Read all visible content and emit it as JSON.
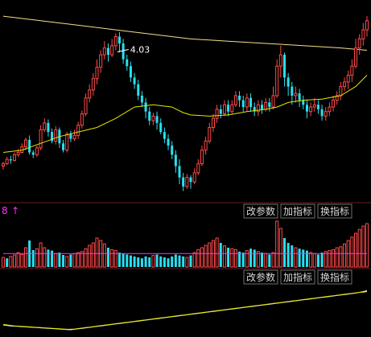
{
  "toolbar": {
    "buttons": [
      "改参数",
      "加指标",
      "换指标"
    ]
  },
  "volume_panel": {
    "indicator_label": "8",
    "arrow": "↑"
  },
  "chart_data": [
    {
      "type": "candlestick",
      "title": "",
      "annotations": [
        {
          "label": "4.03",
          "x": 30
        }
      ],
      "colors": {
        "up": "#ff4a4a",
        "down": "#28e0f0",
        "ma_short": "#e6e600",
        "ma_long": "#f2e08a"
      },
      "grid": false,
      "candles": [
        [
          0,
          98,
          100,
          95,
          102
        ],
        [
          1,
          100,
          104,
          99,
          106
        ],
        [
          2,
          104,
          103,
          100,
          107
        ],
        [
          3,
          103,
          108,
          102,
          110
        ],
        [
          4,
          108,
          110,
          106,
          113
        ],
        [
          5,
          110,
          115,
          109,
          118
        ],
        [
          6,
          115,
          121,
          112,
          123
        ],
        [
          7,
          121,
          110,
          108,
          125
        ],
        [
          8,
          110,
          108,
          105,
          112
        ],
        [
          9,
          108,
          114,
          106,
          116
        ],
        [
          10,
          114,
          130,
          112,
          134
        ],
        [
          11,
          130,
          136,
          128,
          140
        ],
        [
          12,
          136,
          128,
          124,
          139
        ],
        [
          13,
          128,
          120,
          118,
          131
        ],
        [
          14,
          120,
          130,
          117,
          133
        ],
        [
          15,
          130,
          118,
          114,
          132
        ],
        [
          16,
          118,
          112,
          110,
          121
        ],
        [
          17,
          112,
          126,
          110,
          128
        ],
        [
          18,
          126,
          122,
          119,
          129
        ],
        [
          19,
          122,
          125,
          120,
          130
        ],
        [
          20,
          125,
          134,
          122,
          137
        ],
        [
          21,
          134,
          144,
          131,
          147
        ],
        [
          22,
          144,
          158,
          142,
          162
        ],
        [
          23,
          158,
          165,
          154,
          170
        ],
        [
          24,
          165,
          175,
          160,
          180
        ],
        [
          25,
          175,
          185,
          170,
          192
        ],
        [
          26,
          185,
          196,
          180,
          200
        ],
        [
          27,
          196,
          202,
          192,
          208
        ],
        [
          28,
          202,
          196,
          190,
          206
        ],
        [
          29,
          196,
          204,
          194,
          210
        ],
        [
          30,
          204,
          212,
          200,
          215
        ],
        [
          31,
          212,
          206,
          198,
          216
        ],
        [
          32,
          206,
          192,
          188,
          210
        ],
        [
          33,
          192,
          186,
          182,
          196
        ],
        [
          34,
          186,
          176,
          172,
          190
        ],
        [
          35,
          176,
          170,
          166,
          180
        ],
        [
          36,
          170,
          160,
          156,
          174
        ],
        [
          37,
          160,
          154,
          150,
          164
        ],
        [
          38,
          154,
          146,
          140,
          158
        ],
        [
          39,
          146,
          138,
          134,
          150
        ],
        [
          40,
          138,
          142,
          134,
          145
        ],
        [
          41,
          142,
          136,
          130,
          146
        ],
        [
          42,
          136,
          128,
          126,
          140
        ],
        [
          43,
          128,
          122,
          118,
          132
        ],
        [
          44,
          122,
          116,
          112,
          126
        ],
        [
          45,
          116,
          108,
          104,
          120
        ],
        [
          46,
          108,
          98,
          92,
          112
        ],
        [
          47,
          98,
          88,
          82,
          104
        ],
        [
          48,
          88,
          80,
          76,
          92
        ],
        [
          49,
          80,
          88,
          78,
          91
        ],
        [
          50,
          88,
          84,
          78,
          90
        ],
        [
          51,
          84,
          92,
          82,
          96
        ],
        [
          52,
          92,
          100,
          90,
          104
        ],
        [
          53,
          100,
          112,
          98,
          116
        ],
        [
          54,
          112,
          120,
          108,
          124
        ],
        [
          55,
          120,
          132,
          118,
          136
        ],
        [
          56,
          132,
          140,
          128,
          144
        ],
        [
          57,
          140,
          148,
          136,
          152
        ],
        [
          58,
          148,
          144,
          140,
          152
        ],
        [
          59,
          144,
          152,
          142,
          156
        ],
        [
          60,
          152,
          146,
          142,
          156
        ],
        [
          61,
          146,
          152,
          144,
          156
        ],
        [
          62,
          152,
          160,
          150,
          164
        ],
        [
          63,
          160,
          156,
          150,
          164
        ],
        [
          64,
          156,
          150,
          146,
          160
        ],
        [
          65,
          150,
          158,
          146,
          162
        ],
        [
          66,
          158,
          150,
          146,
          162
        ],
        [
          67,
          150,
          146,
          142,
          154
        ],
        [
          68,
          146,
          152,
          142,
          156
        ],
        [
          69,
          152,
          148,
          144,
          156
        ],
        [
          70,
          148,
          154,
          146,
          158
        ],
        [
          71,
          154,
          150,
          146,
          158
        ],
        [
          72,
          150,
          160,
          148,
          168
        ],
        [
          73,
          160,
          186,
          158,
          192
        ],
        [
          74,
          186,
          196,
          176,
          204
        ],
        [
          75,
          196,
          176,
          168,
          198
        ],
        [
          76,
          176,
          168,
          160,
          180
        ],
        [
          77,
          168,
          160,
          152,
          172
        ],
        [
          78,
          160,
          162,
          154,
          168
        ],
        [
          79,
          162,
          156,
          150,
          166
        ],
        [
          80,
          156,
          152,
          148,
          160
        ],
        [
          81,
          152,
          146,
          140,
          156
        ],
        [
          82,
          146,
          150,
          142,
          154
        ],
        [
          83,
          150,
          152,
          146,
          158
        ],
        [
          84,
          152,
          148,
          144,
          156
        ],
        [
          85,
          148,
          142,
          138,
          152
        ],
        [
          86,
          142,
          146,
          138,
          150
        ],
        [
          87,
          146,
          150,
          142,
          154
        ],
        [
          88,
          150,
          156,
          146,
          160
        ],
        [
          89,
          156,
          160,
          152,
          164
        ],
        [
          90,
          160,
          168,
          156,
          172
        ],
        [
          91,
          168,
          172,
          164,
          176
        ],
        [
          92,
          172,
          178,
          166,
          182
        ],
        [
          93,
          178,
          186,
          172,
          192
        ],
        [
          94,
          186,
          202,
          184,
          210
        ],
        [
          95,
          202,
          210,
          196,
          214
        ],
        [
          96,
          210,
          218,
          204,
          224
        ],
        [
          97,
          218,
          226,
          212,
          230
        ]
      ],
      "ma_short": [
        [
          0,
          110
        ],
        [
          5,
          112
        ],
        [
          10,
          118
        ],
        [
          15,
          124
        ],
        [
          20,
          128
        ],
        [
          25,
          132
        ],
        [
          30,
          140
        ],
        [
          35,
          150
        ],
        [
          40,
          152
        ],
        [
          45,
          150
        ],
        [
          48,
          145
        ],
        [
          50,
          143
        ],
        [
          55,
          142
        ],
        [
          60,
          143
        ],
        [
          65,
          146
        ],
        [
          70,
          148
        ],
        [
          73,
          150
        ],
        [
          76,
          154
        ],
        [
          80,
          156
        ],
        [
          85,
          157
        ],
        [
          90,
          160
        ],
        [
          94,
          168
        ],
        [
          97,
          178
        ]
      ],
      "ma_long": [
        [
          0,
          230
        ],
        [
          10,
          226
        ],
        [
          20,
          222
        ],
        [
          30,
          218
        ],
        [
          40,
          214
        ],
        [
          50,
          210
        ],
        [
          60,
          208
        ],
        [
          70,
          206
        ],
        [
          80,
          204
        ],
        [
          90,
          202
        ],
        [
          97,
          200
        ]
      ],
      "ylim": [
        70,
        240
      ],
      "xlim": [
        0,
        97
      ]
    },
    {
      "type": "bar",
      "title": "",
      "note": "volume",
      "values": [
        20,
        18,
        22,
        25,
        30,
        26,
        40,
        55,
        35,
        38,
        50,
        40,
        36,
        34,
        28,
        30,
        25,
        22,
        26,
        28,
        30,
        32,
        38,
        45,
        50,
        60,
        55,
        48,
        40,
        36,
        34,
        30,
        28,
        26,
        24,
        22,
        20,
        18,
        22,
        20,
        24,
        26,
        22,
        20,
        18,
        22,
        26,
        24,
        22,
        20,
        24,
        30,
        36,
        40,
        45,
        50,
        55,
        60,
        50,
        44,
        40,
        38,
        36,
        32,
        30,
        34,
        38,
        36,
        32,
        30,
        28,
        26,
        30,
        95,
        80,
        60,
        50,
        45,
        40,
        38,
        36,
        34,
        30,
        28,
        26,
        30,
        32,
        34,
        36,
        40,
        42,
        48,
        55,
        62,
        70,
        78,
        85,
        90
      ],
      "up_flags": [
        1,
        0,
        1,
        1,
        1,
        1,
        1,
        0,
        0,
        1,
        1,
        1,
        0,
        0,
        1,
        0,
        0,
        1,
        0,
        1,
        1,
        1,
        1,
        1,
        1,
        1,
        1,
        1,
        0,
        1,
        1,
        0,
        0,
        0,
        0,
        0,
        0,
        0,
        0,
        0,
        1,
        0,
        0,
        0,
        0,
        0,
        0,
        0,
        0,
        1,
        0,
        1,
        1,
        1,
        1,
        1,
        1,
        1,
        0,
        1,
        0,
        1,
        1,
        0,
        0,
        1,
        0,
        0,
        1,
        0,
        1,
        0,
        1,
        1,
        1,
        0,
        0,
        0,
        1,
        0,
        0,
        0,
        1,
        1,
        0,
        0,
        1,
        1,
        1,
        1,
        1,
        1,
        1,
        1,
        1,
        1,
        1,
        1
      ],
      "ma_line": 28,
      "ylim": [
        0,
        100
      ]
    },
    {
      "type": "line",
      "title": "",
      "note": "indicator",
      "series": [
        {
          "values": [
            40,
            38,
            36,
            35,
            34,
            33,
            32,
            31,
            30,
            29,
            28,
            27,
            26,
            25,
            24,
            23,
            22,
            21,
            20,
            22,
            24,
            26,
            28,
            30,
            32,
            34,
            36,
            38,
            40,
            42,
            44,
            46,
            48,
            50,
            52,
            54,
            56,
            58,
            60,
            62,
            64,
            66,
            68,
            70,
            72,
            74,
            76,
            78,
            80,
            82,
            84,
            86,
            88,
            90,
            92,
            94,
            96,
            98,
            100,
            102,
            104,
            106,
            108,
            110,
            112,
            114,
            116,
            118,
            120,
            122,
            124,
            126,
            128,
            130,
            132,
            134,
            136,
            138,
            140,
            142,
            144,
            146,
            148,
            150,
            152,
            154,
            156,
            158,
            160,
            162,
            164,
            166,
            168,
            170,
            172,
            175,
            178,
            182
          ]
        },
        {
          "values": [
            42,
            40,
            38,
            36,
            35,
            34,
            33,
            32,
            31,
            30,
            29,
            28,
            27,
            26,
            25,
            24,
            23,
            22,
            22,
            23,
            25,
            27,
            29,
            31,
            33,
            35,
            37,
            39,
            41,
            43,
            45,
            47,
            49,
            51,
            53,
            55,
            57,
            59,
            61,
            63,
            65,
            67,
            69,
            71,
            73,
            75,
            77,
            79,
            81,
            83,
            85,
            87,
            89,
            91,
            93,
            95,
            97,
            99,
            101,
            103,
            105,
            107,
            109,
            111,
            113,
            115,
            117,
            119,
            121,
            123,
            125,
            127,
            129,
            131,
            133,
            135,
            137,
            139,
            141,
            143,
            145,
            147,
            149,
            151,
            153,
            155,
            157,
            159,
            161,
            163,
            165,
            167,
            169,
            171,
            173,
            175,
            176,
            178
          ]
        }
      ],
      "ylim": [
        0,
        200
      ]
    }
  ]
}
